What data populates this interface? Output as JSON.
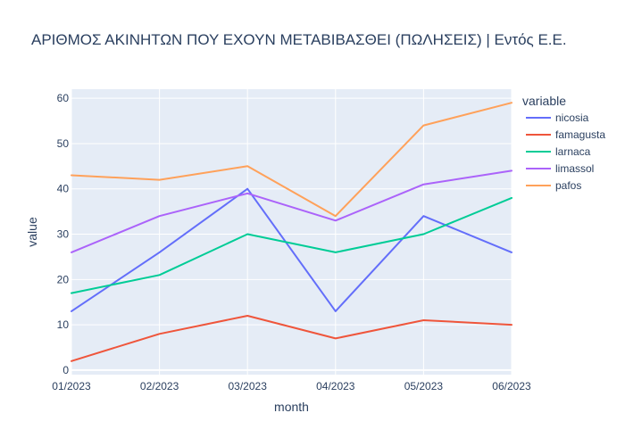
{
  "chart_data": {
    "type": "line",
    "title": "ΑΡΙΘΜΟΣ ΑΚΙΝΗΤΩΝ ΠΟΥ ΕΧΟΥΝ ΜΕΤΑΒΙΒΑΣΘΕΙ (ΠΩΛΗΣΕΙΣ) | Εντός Ε.Ε.",
    "xlabel": "month",
    "ylabel": "value",
    "categories": [
      "01/2023",
      "02/2023",
      "03/2023",
      "04/2023",
      "05/2023",
      "06/2023"
    ],
    "ylim": [
      -1,
      62
    ],
    "yticks": [
      0,
      10,
      20,
      30,
      40,
      50,
      60
    ],
    "grid": true,
    "legend": {
      "title": "variable",
      "placement": "right"
    },
    "series": [
      {
        "name": "nicosia",
        "color": "#636efa",
        "values": [
          13,
          26,
          40,
          13,
          34,
          26
        ]
      },
      {
        "name": "famagusta",
        "color": "#EF553B",
        "values": [
          2,
          8,
          12,
          7,
          11,
          10
        ]
      },
      {
        "name": "larnaca",
        "color": "#00cc96",
        "values": [
          17,
          21,
          30,
          26,
          30,
          38
        ]
      },
      {
        "name": "limassol",
        "color": "#ab63fa",
        "values": [
          26,
          34,
          39,
          33,
          41,
          44
        ]
      },
      {
        "name": "pafos",
        "color": "#FFA15A",
        "values": [
          43,
          42,
          45,
          34,
          54,
          59
        ]
      }
    ]
  }
}
